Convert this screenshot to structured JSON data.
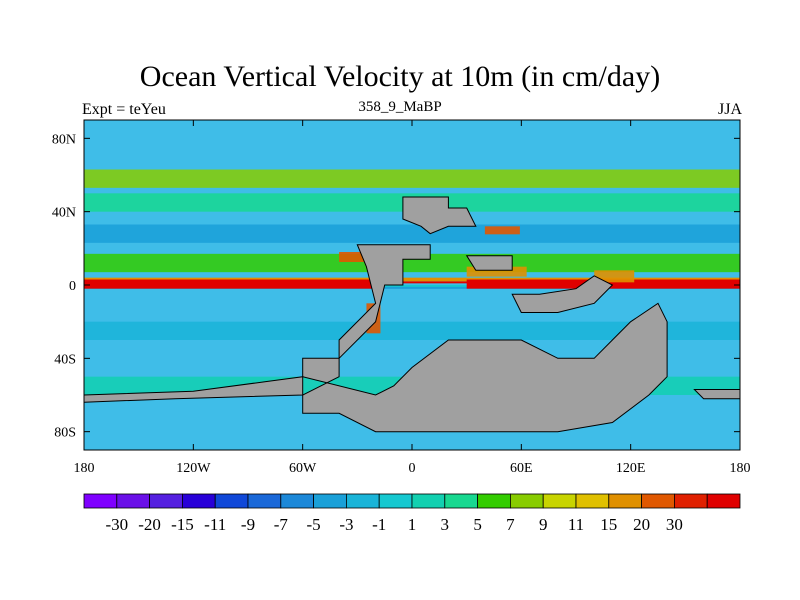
{
  "title": "Ocean Vertical Velocity at 10m (in cm/day)",
  "subtitle_left": "Expt = teYeu",
  "subtitle_center": "358_9_MaBP",
  "subtitle_right": "JJA",
  "chart_data": {
    "type": "heatmap",
    "variable": "Ocean vertical velocity at 10m",
    "units": "cm/day",
    "x_ticks": [
      "180",
      "120W",
      "60W",
      "0",
      "60E",
      "120E",
      "180"
    ],
    "x_tick_values": [
      -180,
      -120,
      -60,
      0,
      60,
      120,
      180
    ],
    "y_ticks": [
      "80N",
      "40N",
      "0",
      "40S",
      "80S"
    ],
    "y_tick_values": [
      80,
      40,
      0,
      -40,
      -80
    ],
    "xlim": [
      -180,
      180
    ],
    "ylim": [
      -90,
      90
    ],
    "colorbar_labels": [
      "-30",
      "-20",
      "-15",
      "-11",
      "-9",
      "-7",
      "-5",
      "-3",
      "-1",
      "1",
      "3",
      "5",
      "7",
      "9",
      "11",
      "15",
      "20",
      "30"
    ],
    "colorbar_colors": [
      "#7f00ff",
      "#6a10e8",
      "#5520e0",
      "#2800d8",
      "#1048d8",
      "#1a68d8",
      "#1c88d8",
      "#1aa0d8",
      "#1ab4d8",
      "#16c8d0",
      "#12d0b0",
      "#18d890",
      "#33cc00",
      "#88cc00",
      "#c8d400",
      "#e0c000",
      "#e09000",
      "#e05800",
      "#e02000",
      "#e00000"
    ],
    "land_color": "#a0a0a0",
    "background_color": "#3fbde8",
    "features": {
      "equatorial_upwelling": [
        [
          -180,
          3,
          -20,
          -1,
          30
        ]
      ],
      "bands": [
        {
          "lat": 58,
          "value": 7
        },
        {
          "lat": 45,
          "value": 3
        },
        {
          "lat": 28,
          "value": -5
        },
        {
          "lat": 12,
          "value": 5
        },
        {
          "lat": -25,
          "value": -3
        },
        {
          "lat": -55,
          "value": 1
        }
      ]
    }
  }
}
